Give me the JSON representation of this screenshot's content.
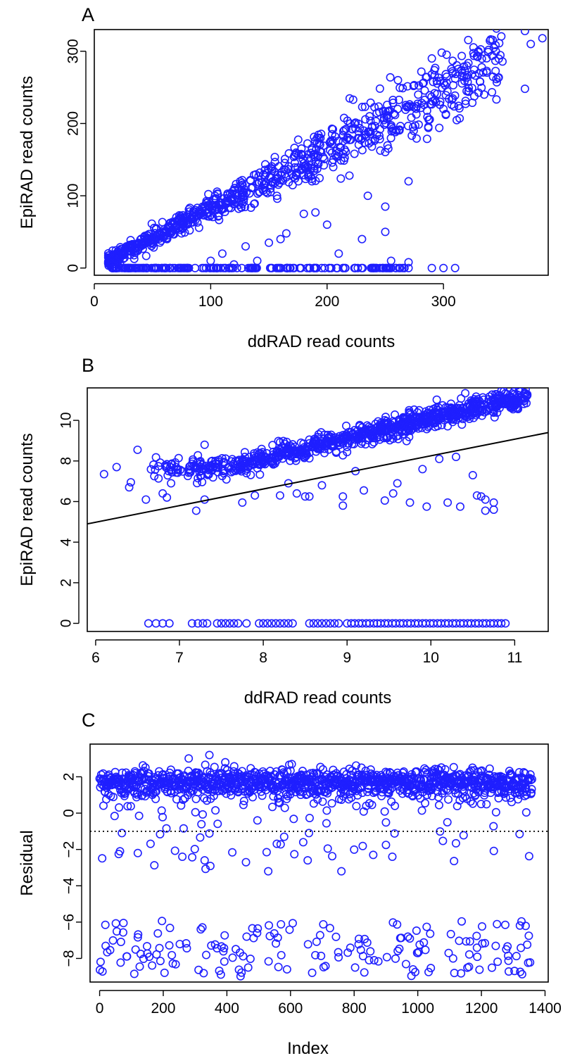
{
  "colors": {
    "points": "#1f1fff",
    "axes": "#000000",
    "fitline": "#000000",
    "background": "#ffffff"
  },
  "chart_data": [
    {
      "panel": "A",
      "type": "scatter",
      "title": "",
      "xlabel": "ddRAD read counts",
      "ylabel": "EpiRAD read counts",
      "xlim": [
        0,
        390
      ],
      "ylim": [
        -10,
        330
      ],
      "xticks": [
        0,
        100,
        200,
        300
      ],
      "yticks": [
        0,
        100,
        200,
        300
      ],
      "ytick_rotation": "vertical",
      "grid": false,
      "legend": "none",
      "marker": "open-circle",
      "summary": {
        "main_trend": "EpiRAD ≈ 0.82 × ddRAD, spreading wider at higher counts",
        "zero_band": "many loci at EpiRAD = 0 for ddRAD 15–310",
        "outliers_below_trend": [
          [
            110,
            20
          ],
          [
            160,
            40
          ],
          [
            180,
            75
          ],
          [
            230,
            40
          ],
          [
            250,
            85
          ],
          [
            270,
            120
          ]
        ],
        "max_points": [
          [
            370,
            328
          ],
          [
            385,
            318
          ],
          [
            370,
            248
          ]
        ]
      },
      "points": []
    },
    {
      "panel": "B",
      "type": "scatter",
      "title": "",
      "xlabel": "ddRAD read counts",
      "ylabel": "EpiRAD read counts",
      "xlim": [
        5.9,
        11.4
      ],
      "ylim": [
        -0.4,
        11.6
      ],
      "xticks": [
        6,
        7,
        8,
        9,
        10,
        11
      ],
      "yticks": [
        0,
        2,
        4,
        6,
        8,
        10
      ],
      "grid": false,
      "legend": "none",
      "marker": "open-circle",
      "fit_line": {
        "x": [
          5.9,
          11.4
        ],
        "y": [
          4.9,
          9.4
        ]
      },
      "summary": {
        "scale": "log-transformed counts",
        "main_trend": "from ~7.3 at x=6.1 rising to ~11.2 at x=11.1",
        "zero_band": "EpiRAD = 0 (log) for ddRAD ≈ 6.6–10.9",
        "below_line_points": "scattered between 5.5 and 7"
      },
      "points": []
    },
    {
      "panel": "C",
      "type": "scatter",
      "title": "",
      "xlabel": "Index",
      "ylabel": "Residual",
      "xlim": [
        -30,
        1410
      ],
      "ylim": [
        -9.3,
        3.8
      ],
      "xticks": [
        0,
        200,
        400,
        600,
        800,
        1000,
        1200,
        1400
      ],
      "yticks": [
        -8,
        -6,
        -4,
        -2,
        0,
        2
      ],
      "grid": false,
      "legend": "none",
      "marker": "open-circle",
      "threshold_line": {
        "y": -1,
        "style": "dotted"
      },
      "summary": {
        "n_points": 1360,
        "main_band": "residuals around 1.7 (range ~0 to 3.2)",
        "low_band": "residuals between -9 and -5.6",
        "notable_points": [
          [
            345,
            3.2
          ],
          [
            395,
            2.8
          ],
          [
            760,
            -3.2
          ],
          [
            530,
            -3.2
          ],
          [
            920,
            -2.4
          ]
        ]
      },
      "points": []
    }
  ]
}
